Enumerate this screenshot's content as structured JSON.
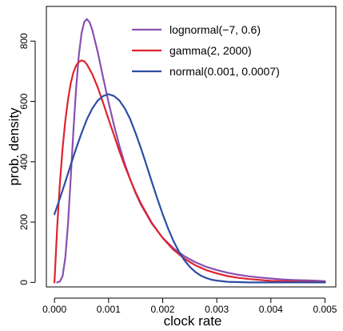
{
  "chart_data": {
    "type": "line",
    "xlabel": "clock rate",
    "ylabel": "prob. density",
    "xlim": [
      -0.00015,
      0.0052
    ],
    "ylim": [
      -15,
      915
    ],
    "x_ticks": [
      0.0,
      0.001,
      0.002,
      0.003,
      0.004,
      0.005
    ],
    "x_tick_labels": [
      "0.000",
      "0.001",
      "0.002",
      "0.003",
      "0.004",
      "0.005"
    ],
    "y_ticks": [
      0,
      200,
      400,
      600,
      800
    ],
    "y_tick_labels": [
      "0",
      "200",
      "400",
      "600",
      "800"
    ],
    "grid": false,
    "legend_position": "top-right",
    "series": [
      {
        "name": "lognormal(−7, 0.6)",
        "color": "#8a4fb0",
        "x": [
          5e-05,
          0.0001,
          0.00015,
          0.0002,
          0.00025,
          0.0003,
          0.00035,
          0.0004,
          0.00045,
          0.0005,
          0.00055,
          0.0006,
          0.00065,
          0.0007,
          0.0008,
          0.0009,
          0.001,
          0.0011,
          0.0012,
          0.0013,
          0.0014,
          0.0015,
          0.0016,
          0.0018,
          0.002,
          0.0022,
          0.0024,
          0.0026,
          0.0028,
          0.003,
          0.0032,
          0.0034,
          0.0036,
          0.0038,
          0.004,
          0.0042,
          0.0044,
          0.0046,
          0.0048,
          0.005
        ],
        "y": [
          0,
          3,
          21,
          83,
          195,
          344,
          502,
          643,
          753,
          826,
          864,
          873,
          862,
          836,
          763,
          679,
          597,
          521,
          453,
          393,
          341,
          296,
          257,
          195,
          148,
          113,
          87,
          67,
          52,
          41,
          32,
          25,
          20,
          16,
          13,
          10,
          8,
          7,
          6,
          4
        ]
      },
      {
        "name": "gamma(2, 2000)",
        "color": "#e0232f",
        "x": [
          0,
          5e-05,
          0.0001,
          0.00015,
          0.0002,
          0.00025,
          0.0003,
          0.00035,
          0.0004,
          0.00045,
          0.0005,
          0.00055,
          0.0006,
          0.0007,
          0.0008,
          0.0009,
          0.001,
          0.0011,
          0.0012,
          0.0013,
          0.0014,
          0.0015,
          0.0016,
          0.0018,
          0.002,
          0.0022,
          0.0024,
          0.0026,
          0.0028,
          0.003,
          0.0032,
          0.0034,
          0.0036,
          0.0038,
          0.004,
          0.0042,
          0.0044,
          0.0046,
          0.0048,
          0.005
        ],
        "y": [
          0,
          181,
          328,
          445,
          536,
          607,
          659,
          696,
          719,
          731,
          736,
          733,
          723,
          690,
          646,
          595,
          541,
          488,
          435,
          386,
          341,
          299,
          261,
          197,
          147,
          108,
          79,
          57,
          41,
          30,
          21,
          15,
          11,
          8,
          5,
          4,
          3,
          2,
          1,
          1
        ]
      },
      {
        "name": "normal(0.001, 0.0007)",
        "color": "#2e4da3",
        "x": [
          0,
          0.0001,
          0.0002,
          0.0003,
          0.0004,
          0.0005,
          0.0006,
          0.0007,
          0.0008,
          0.0009,
          0.001,
          0.0011,
          0.0012,
          0.0013,
          0.0014,
          0.0015,
          0.0016,
          0.0017,
          0.0018,
          0.0019,
          0.002,
          0.0021,
          0.0022,
          0.0023,
          0.0024,
          0.0025,
          0.0026,
          0.0027,
          0.0028,
          0.0029,
          0.003,
          0.0032,
          0.0034,
          0.0036,
          0.0038,
          0.004,
          0.0045,
          0.005
        ],
        "y": [
          226,
          278,
          333,
          389,
          444,
          495,
          541,
          577,
          603,
          618,
          624,
          618,
          603,
          577,
          541,
          495,
          444,
          389,
          333,
          278,
          226,
          179,
          137,
          102,
          74,
          52,
          35,
          23,
          15,
          9,
          6,
          2,
          1,
          0,
          0,
          0,
          0,
          0
        ]
      }
    ]
  }
}
